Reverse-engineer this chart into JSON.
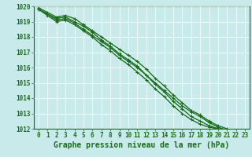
{
  "xlabel": "Graphe pression niveau de la mer (hPa)",
  "hours": [
    0,
    1,
    2,
    3,
    4,
    5,
    6,
    7,
    8,
    9,
    10,
    11,
    12,
    13,
    14,
    15,
    16,
    17,
    18,
    19,
    20,
    21,
    22,
    23
  ],
  "lines": [
    [
      1019.8,
      1019.5,
      1019.2,
      1019.3,
      1019.0,
      1018.7,
      1018.3,
      1017.8,
      1017.4,
      1016.9,
      1016.5,
      1016.1,
      1015.5,
      1015.0,
      1014.5,
      1014.0,
      1013.5,
      1013.1,
      1012.8,
      1012.4,
      1012.1,
      1011.9,
      1011.8,
      1011.7
    ],
    [
      1019.8,
      1019.4,
      1019.0,
      1019.1,
      1018.8,
      1018.4,
      1018.0,
      1017.5,
      1017.1,
      1016.6,
      1016.2,
      1015.7,
      1015.2,
      1014.6,
      1014.1,
      1013.5,
      1013.0,
      1012.6,
      1012.3,
      1012.1,
      1012.0,
      1011.9,
      1011.8,
      1011.7
    ],
    [
      1019.9,
      1019.6,
      1019.3,
      1019.4,
      1019.2,
      1018.8,
      1018.4,
      1018.0,
      1017.6,
      1017.2,
      1016.8,
      1016.4,
      1015.9,
      1015.3,
      1014.8,
      1014.2,
      1013.7,
      1013.2,
      1012.9,
      1012.5,
      1012.2,
      1012.0,
      1011.8,
      1011.7
    ],
    [
      1019.8,
      1019.5,
      1019.1,
      1019.2,
      1018.9,
      1018.5,
      1018.1,
      1017.7,
      1017.3,
      1016.8,
      1016.4,
      1016.0,
      1015.5,
      1014.9,
      1014.4,
      1013.8,
      1013.3,
      1012.8,
      1012.5,
      1012.2,
      1012.0,
      1011.9,
      1011.7,
      1011.7
    ]
  ],
  "line_color": "#1a6b1a",
  "marker": "+",
  "bg_color": "#c8eaea",
  "grid_color": "#ffffff",
  "plot_bg": "#c8eaea",
  "ylim": [
    1012,
    1020
  ],
  "yticks": [
    1012,
    1013,
    1014,
    1015,
    1016,
    1017,
    1018,
    1019,
    1020
  ],
  "xticks": [
    0,
    1,
    2,
    3,
    4,
    5,
    6,
    7,
    8,
    9,
    10,
    11,
    12,
    13,
    14,
    15,
    16,
    17,
    18,
    19,
    20,
    21,
    22,
    23
  ],
  "label_color": "#1a6b1a",
  "tick_fontsize": 5.5,
  "label_fontsize": 7.0
}
